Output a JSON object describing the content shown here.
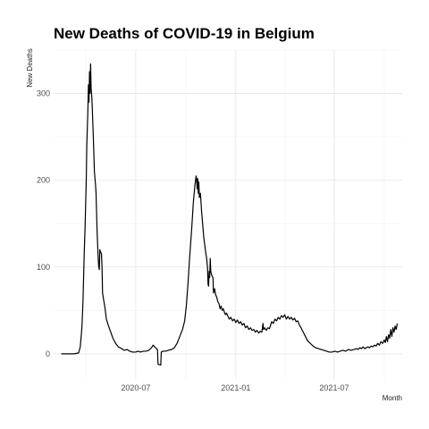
{
  "chart_data": {
    "type": "line",
    "title": "New Deaths of COVID-19 in Belgium",
    "xlabel": "Month",
    "ylabel": "New Deaths",
    "x_type": "date",
    "xlim": [
      "2020-02-01",
      "2021-11-03"
    ],
    "ylim": [
      -30,
      350
    ],
    "x_ticks": [
      {
        "value": "2020-07-01",
        "label": "2020-07"
      },
      {
        "value": "2021-01-01",
        "label": "2021-01"
      },
      {
        "value": "2021-07-01",
        "label": "2021-07"
      }
    ],
    "y_ticks": [
      {
        "value": 0,
        "label": "0"
      },
      {
        "value": 100,
        "label": "100"
      },
      {
        "value": 200,
        "label": "200"
      },
      {
        "value": 300,
        "label": "300"
      }
    ],
    "grid": true,
    "legend": "none",
    "series": [
      {
        "color": "#000000",
        "points": [
          [
            "2020-02-15",
            0
          ],
          [
            "2020-03-10",
            0
          ],
          [
            "2020-03-18",
            1
          ],
          [
            "2020-03-21",
            8
          ],
          [
            "2020-03-24",
            30
          ],
          [
            "2020-03-26",
            60
          ],
          [
            "2020-03-28",
            110
          ],
          [
            "2020-03-30",
            150
          ],
          [
            "2020-04-01",
            200
          ],
          [
            "2020-04-02",
            240
          ],
          [
            "2020-04-04",
            280
          ],
          [
            "2020-04-05",
            310
          ],
          [
            "2020-04-06",
            290
          ],
          [
            "2020-04-07",
            325
          ],
          [
            "2020-04-08",
            300
          ],
          [
            "2020-04-09",
            334
          ],
          [
            "2020-04-10",
            305
          ],
          [
            "2020-04-11",
            298
          ],
          [
            "2020-04-12",
            285
          ],
          [
            "2020-04-14",
            250
          ],
          [
            "2020-04-16",
            210
          ],
          [
            "2020-04-18",
            195
          ],
          [
            "2020-04-19",
            185
          ],
          [
            "2020-04-21",
            140
          ],
          [
            "2020-04-23",
            110
          ],
          [
            "2020-04-24",
            100
          ],
          [
            "2020-04-25",
            97
          ],
          [
            "2020-04-26",
            120
          ],
          [
            "2020-04-27",
            118
          ],
          [
            "2020-04-29",
            115
          ],
          [
            "2020-04-30",
            100
          ],
          [
            "2020-05-01",
            70
          ],
          [
            "2020-05-03",
            62
          ],
          [
            "2020-05-05",
            55
          ],
          [
            "2020-05-08",
            40
          ],
          [
            "2020-05-12",
            32
          ],
          [
            "2020-05-16",
            25
          ],
          [
            "2020-05-20",
            18
          ],
          [
            "2020-05-25",
            12
          ],
          [
            "2020-05-30",
            8
          ],
          [
            "2020-06-05",
            6
          ],
          [
            "2020-06-10",
            4
          ],
          [
            "2020-06-15",
            5
          ],
          [
            "2020-06-20",
            3
          ],
          [
            "2020-06-25",
            2
          ],
          [
            "2020-07-01",
            2
          ],
          [
            "2020-07-05",
            3
          ],
          [
            "2020-07-10",
            2
          ],
          [
            "2020-07-15",
            3
          ],
          [
            "2020-07-20",
            3
          ],
          [
            "2020-07-25",
            4
          ],
          [
            "2020-07-30",
            7
          ],
          [
            "2020-08-02",
            10
          ],
          [
            "2020-08-05",
            8
          ],
          [
            "2020-08-08",
            6
          ],
          [
            "2020-08-10",
            5
          ],
          [
            "2020-08-11",
            -12
          ],
          [
            "2020-08-16",
            -13
          ],
          [
            "2020-08-17",
            2
          ],
          [
            "2020-08-20",
            3
          ],
          [
            "2020-08-25",
            3
          ],
          [
            "2020-08-30",
            4
          ],
          [
            "2020-09-05",
            5
          ],
          [
            "2020-09-10",
            7
          ],
          [
            "2020-09-15",
            12
          ],
          [
            "2020-09-20",
            20
          ],
          [
            "2020-09-25",
            28
          ],
          [
            "2020-09-29",
            38
          ],
          [
            "2020-10-02",
            55
          ],
          [
            "2020-10-05",
            80
          ],
          [
            "2020-10-08",
            110
          ],
          [
            "2020-10-12",
            145
          ],
          [
            "2020-10-15",
            175
          ],
          [
            "2020-10-18",
            195
          ],
          [
            "2020-10-20",
            205
          ],
          [
            "2020-10-21",
            200
          ],
          [
            "2020-10-22",
            190
          ],
          [
            "2020-10-23",
            202
          ],
          [
            "2020-10-24",
            185
          ],
          [
            "2020-10-25",
            198
          ],
          [
            "2020-10-26",
            180
          ],
          [
            "2020-10-28",
            185
          ],
          [
            "2020-10-30",
            165
          ],
          [
            "2020-11-01",
            150
          ],
          [
            "2020-11-03",
            135
          ],
          [
            "2020-11-05",
            125
          ],
          [
            "2020-11-07",
            115
          ],
          [
            "2020-11-08",
            112
          ],
          [
            "2020-11-10",
            100
          ],
          [
            "2020-11-11",
            80
          ],
          [
            "2020-11-12",
            78
          ],
          [
            "2020-11-13",
            95
          ],
          [
            "2020-11-14",
            88
          ],
          [
            "2020-11-15",
            110
          ],
          [
            "2020-11-16",
            95
          ],
          [
            "2020-11-18",
            90
          ],
          [
            "2020-11-20",
            88
          ],
          [
            "2020-11-21",
            70
          ],
          [
            "2020-11-23",
            75
          ],
          [
            "2020-11-25",
            68
          ],
          [
            "2020-11-27",
            65
          ],
          [
            "2020-11-29",
            60
          ],
          [
            "2020-12-01",
            58
          ],
          [
            "2020-12-03",
            52
          ],
          [
            "2020-12-05",
            55
          ],
          [
            "2020-12-07",
            50
          ],
          [
            "2020-12-09",
            52
          ],
          [
            "2020-12-11",
            48
          ],
          [
            "2020-12-13",
            45
          ],
          [
            "2020-12-15",
            47
          ],
          [
            "2020-12-17",
            44
          ],
          [
            "2020-12-20",
            40
          ],
          [
            "2020-12-23",
            42
          ],
          [
            "2020-12-26",
            38
          ],
          [
            "2020-12-29",
            40
          ],
          [
            "2021-01-01",
            36
          ],
          [
            "2021-01-04",
            39
          ],
          [
            "2021-01-07",
            35
          ],
          [
            "2021-01-10",
            37
          ],
          [
            "2021-01-13",
            33
          ],
          [
            "2021-01-16",
            35
          ],
          [
            "2021-01-19",
            30
          ],
          [
            "2021-01-22",
            32
          ],
          [
            "2021-01-25",
            28
          ],
          [
            "2021-01-28",
            30
          ],
          [
            "2021-01-31",
            27
          ],
          [
            "2021-02-03",
            28
          ],
          [
            "2021-02-06",
            25
          ],
          [
            "2021-02-09",
            27
          ],
          [
            "2021-02-12",
            24
          ],
          [
            "2021-02-15",
            26
          ],
          [
            "2021-02-18",
            25
          ],
          [
            "2021-02-20",
            35
          ],
          [
            "2021-02-21",
            28
          ],
          [
            "2021-02-23",
            30
          ],
          [
            "2021-02-26",
            27
          ],
          [
            "2021-03-01",
            30
          ],
          [
            "2021-03-04",
            29
          ],
          [
            "2021-03-06",
            33
          ],
          [
            "2021-03-08",
            37
          ],
          [
            "2021-03-11",
            35
          ],
          [
            "2021-03-14",
            40
          ],
          [
            "2021-03-17",
            38
          ],
          [
            "2021-03-20",
            42
          ],
          [
            "2021-03-23",
            40
          ],
          [
            "2021-03-26",
            44
          ],
          [
            "2021-03-29",
            42
          ],
          [
            "2021-04-01",
            45
          ],
          [
            "2021-04-04",
            40
          ],
          [
            "2021-04-07",
            43
          ],
          [
            "2021-04-10",
            40
          ],
          [
            "2021-04-13",
            42
          ],
          [
            "2021-04-16",
            39
          ],
          [
            "2021-04-19",
            41
          ],
          [
            "2021-04-22",
            37
          ],
          [
            "2021-04-25",
            38
          ],
          [
            "2021-04-28",
            33
          ],
          [
            "2021-05-01",
            30
          ],
          [
            "2021-05-05",
            25
          ],
          [
            "2021-05-09",
            20
          ],
          [
            "2021-05-13",
            15
          ],
          [
            "2021-05-18",
            12
          ],
          [
            "2021-05-23",
            9
          ],
          [
            "2021-05-28",
            7
          ],
          [
            "2021-06-02",
            6
          ],
          [
            "2021-06-07",
            5
          ],
          [
            "2021-06-12",
            4
          ],
          [
            "2021-06-17",
            3
          ],
          [
            "2021-06-22",
            2
          ],
          [
            "2021-06-27",
            2
          ],
          [
            "2021-07-02",
            3
          ],
          [
            "2021-07-07",
            2
          ],
          [
            "2021-07-12",
            3
          ],
          [
            "2021-07-17",
            4
          ],
          [
            "2021-07-22",
            3
          ],
          [
            "2021-07-27",
            5
          ],
          [
            "2021-08-01",
            4
          ],
          [
            "2021-08-06",
            5
          ],
          [
            "2021-08-11",
            6
          ],
          [
            "2021-08-14",
            5
          ],
          [
            "2021-08-17",
            7
          ],
          [
            "2021-08-20",
            6
          ],
          [
            "2021-08-23",
            8
          ],
          [
            "2021-08-26",
            6
          ],
          [
            "2021-08-29",
            7
          ],
          [
            "2021-09-01",
            8
          ],
          [
            "2021-09-04",
            7
          ],
          [
            "2021-09-07",
            9
          ],
          [
            "2021-09-10",
            8
          ],
          [
            "2021-09-13",
            10
          ],
          [
            "2021-09-16",
            9
          ],
          [
            "2021-09-19",
            12
          ],
          [
            "2021-09-22",
            10
          ],
          [
            "2021-09-25",
            14
          ],
          [
            "2021-09-28",
            12
          ],
          [
            "2021-10-01",
            16
          ],
          [
            "2021-10-03",
            13
          ],
          [
            "2021-10-05",
            20
          ],
          [
            "2021-10-07",
            14
          ],
          [
            "2021-10-09",
            22
          ],
          [
            "2021-10-11",
            18
          ],
          [
            "2021-10-13",
            28
          ],
          [
            "2021-10-15",
            20
          ],
          [
            "2021-10-17",
            30
          ],
          [
            "2021-10-19",
            25
          ],
          [
            "2021-10-21",
            32
          ],
          [
            "2021-10-23",
            28
          ],
          [
            "2021-10-25",
            35
          ]
        ]
      }
    ]
  }
}
